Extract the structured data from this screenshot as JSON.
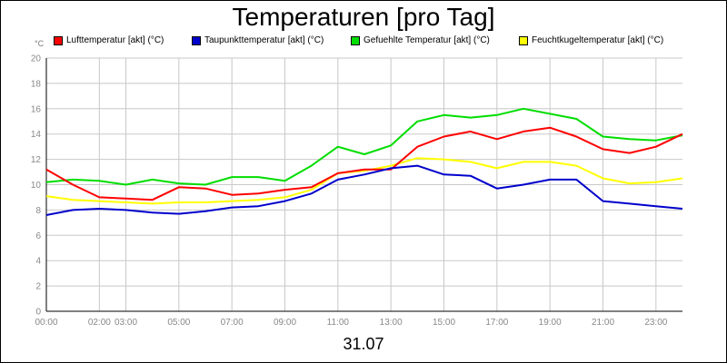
{
  "chart_data": {
    "type": "line",
    "title": "Temperaturen [pro Tag]",
    "unit_label": "°C",
    "xlabel": "31.07",
    "ylim": [
      0,
      20
    ],
    "y_ticks": [
      "0",
      "2",
      "4",
      "6",
      "8",
      "10",
      "12",
      "14",
      "16",
      "18",
      "20"
    ],
    "x_ticks": [
      "00:00",
      "02:00",
      "03:00",
      "05:00",
      "07:00",
      "09:00",
      "11:00",
      "13:00",
      "15:00",
      "17:00",
      "19:00",
      "21:00",
      "23:00"
    ],
    "x_tick_hours": [
      0,
      2,
      3,
      5,
      7,
      9,
      11,
      13,
      15,
      17,
      19,
      21,
      23
    ],
    "grid": true,
    "legend_position": "top",
    "series": [
      {
        "name": "Lufttemperatur [akt] (°C)",
        "color": "#ff0000",
        "x": [
          0,
          1,
          2,
          3,
          4,
          5,
          6,
          7,
          8,
          9,
          10,
          11,
          12,
          13,
          14,
          15,
          16,
          17,
          18,
          19,
          20,
          21,
          22,
          23,
          24
        ],
        "values": [
          11.2,
          10.0,
          9.0,
          8.9,
          8.8,
          9.8,
          9.7,
          9.2,
          9.3,
          9.6,
          9.8,
          10.9,
          11.2,
          11.2,
          13.0,
          13.8,
          14.2,
          13.6,
          14.2,
          14.5,
          13.8,
          12.8,
          12.5,
          13.0,
          14.0
        ]
      },
      {
        "name": "Taupunkttemperatur [akt] (°C)",
        "color": "#0000cc",
        "x": [
          0,
          1,
          2,
          3,
          4,
          5,
          6,
          7,
          8,
          9,
          10,
          11,
          12,
          13,
          14,
          15,
          16,
          17,
          18,
          19,
          20,
          21,
          22,
          23,
          24
        ],
        "values": [
          7.6,
          8.0,
          8.1,
          8.0,
          7.8,
          7.7,
          7.9,
          8.2,
          8.3,
          8.7,
          9.3,
          10.4,
          10.8,
          11.3,
          11.5,
          10.8,
          10.7,
          9.7,
          10.0,
          10.4,
          10.4,
          8.7,
          8.5,
          8.3,
          8.1
        ]
      },
      {
        "name": "Gefuehlte Temperatur [akt] (°C)",
        "color": "#00dd00",
        "x": [
          0,
          1,
          2,
          3,
          4,
          5,
          6,
          7,
          8,
          9,
          10,
          11,
          12,
          13,
          14,
          15,
          16,
          17,
          18,
          19,
          20,
          21,
          22,
          23,
          24
        ],
        "values": [
          10.2,
          10.4,
          10.3,
          10.0,
          10.4,
          10.1,
          10.0,
          10.6,
          10.6,
          10.3,
          11.5,
          13.0,
          12.4,
          13.1,
          15.0,
          15.5,
          15.3,
          15.5,
          16.0,
          15.6,
          15.2,
          13.8,
          13.6,
          13.5,
          13.9
        ]
      },
      {
        "name": "Feuchtkugeltemperatur [akt] (°C)",
        "color": "#ffff00",
        "x": [
          0,
          1,
          2,
          3,
          4,
          5,
          6,
          7,
          8,
          9,
          10,
          11,
          12,
          13,
          14,
          15,
          16,
          17,
          18,
          19,
          20,
          21,
          22,
          23,
          24
        ],
        "values": [
          9.1,
          8.8,
          8.7,
          8.6,
          8.5,
          8.6,
          8.6,
          8.7,
          8.8,
          9.0,
          9.6,
          10.9,
          11.1,
          11.5,
          12.1,
          12.0,
          11.8,
          11.3,
          11.8,
          11.8,
          11.5,
          10.5,
          10.1,
          10.2,
          10.5
        ]
      }
    ]
  }
}
